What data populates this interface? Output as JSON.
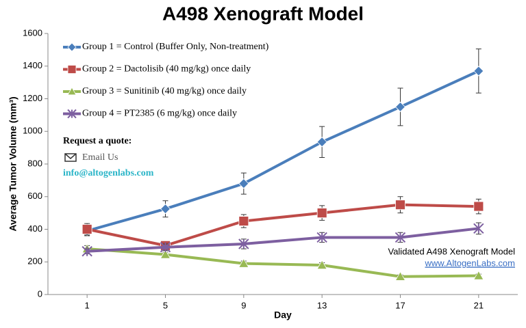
{
  "chart_data": {
    "type": "line",
    "title": "A498 Xenograft Model",
    "x_label": "Day",
    "y_label": "Average Tumor Volume (mm³)",
    "x": [
      1,
      5,
      9,
      13,
      17,
      21
    ],
    "xlim": [
      -1,
      23
    ],
    "xticks": [
      1,
      5,
      9,
      13,
      17,
      21
    ],
    "ylim": [
      0,
      1600
    ],
    "yticks": [
      0,
      200,
      400,
      600,
      800,
      1000,
      1200,
      1400,
      1600
    ],
    "grid": false,
    "legend": "upper left",
    "series": [
      {
        "name": "Group 1 = Control (Buffer Only, Non-treatment)",
        "color": "#4a7ebb",
        "marker": "diamond",
        "values": [
          390,
          525,
          680,
          935,
          1150,
          1370
        ],
        "errors": [
          30,
          50,
          65,
          95,
          115,
          135
        ]
      },
      {
        "name": "Group 2 = Dactolisib (40 mg/kg) once daily",
        "color": "#be4b48",
        "marker": "square",
        "values": [
          400,
          300,
          450,
          500,
          550,
          540
        ],
        "errors": [
          35,
          25,
          40,
          45,
          50,
          45
        ]
      },
      {
        "name": "Group 3 = Sunitinib (40 mg/kg) once daily",
        "color": "#98b954",
        "marker": "triangle",
        "values": [
          280,
          245,
          190,
          180,
          110,
          115
        ],
        "errors": [
          20,
          15,
          15,
          15,
          10,
          10
        ]
      },
      {
        "name": "Group 4 = PT2385 (6 mg/kg) once daily",
        "color": "#7d5fa0",
        "marker": "star",
        "values": [
          265,
          290,
          310,
          350,
          350,
          405
        ],
        "errors": [
          15,
          20,
          30,
          30,
          30,
          35
        ]
      }
    ],
    "annotations": [
      "Request a quote:",
      "Email Us",
      "info@altogenlabs.com",
      "Validated A498 Xenograft Model",
      "www.AltogenLabs.com"
    ]
  }
}
